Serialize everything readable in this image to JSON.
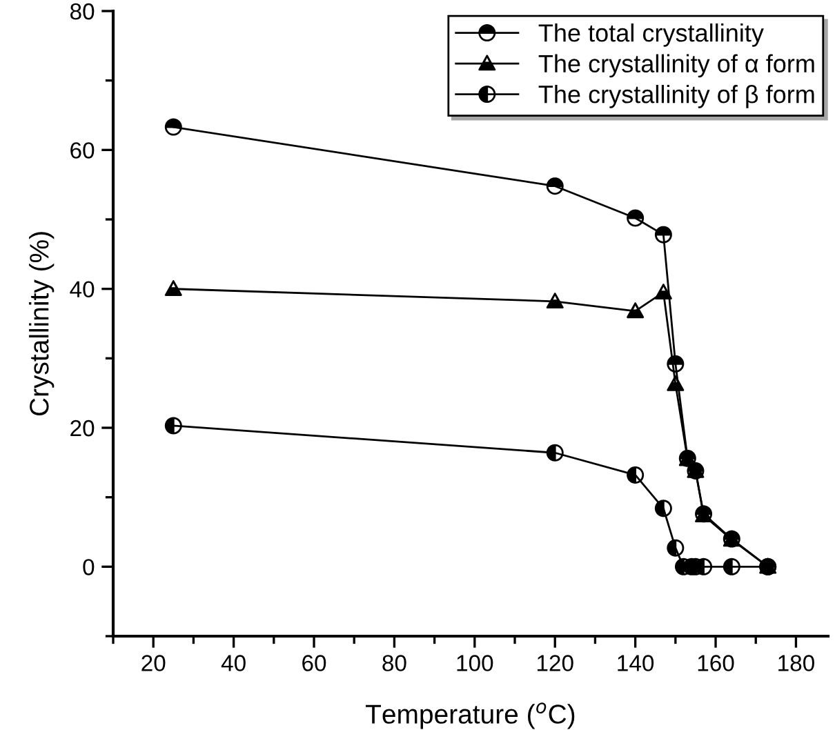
{
  "chart_data": {
    "type": "line",
    "xlabel": "Temperature ($^{o}$C)",
    "ylabel": "Crystallinity (%)",
    "xlim": [
      10,
      188
    ],
    "ylim": [
      -10,
      80
    ],
    "xticks": [
      20,
      40,
      60,
      80,
      100,
      120,
      140,
      160,
      180
    ],
    "yticks": [
      0,
      20,
      40,
      60,
      80
    ],
    "legend": "top right",
    "grid": false,
    "line_style": "solid",
    "series": [
      {
        "name": "The total crystallinity",
        "color": "#000000",
        "marker": "circle",
        "x": [
          25,
          120,
          140,
          147,
          150,
          153,
          155,
          157,
          164,
          173
        ],
        "values": [
          63.3,
          54.8,
          50.2,
          47.8,
          29.2,
          15.6,
          13.8,
          7.6,
          4.0,
          0
        ]
      },
      {
        "name": "The crystallinity of α form",
        "color": "#000000",
        "marker": "triangle",
        "x": [
          25,
          120,
          140,
          147,
          150,
          153,
          155,
          157,
          164,
          173
        ],
        "values": [
          40.0,
          38.2,
          36.8,
          39.5,
          26.3,
          15.5,
          13.8,
          7.4,
          3.9,
          0
        ]
      },
      {
        "name": "The crystallinity of β form",
        "color": "#000000",
        "marker": "circle",
        "x": [
          25,
          120,
          140,
          147,
          150,
          152,
          154,
          155,
          157,
          164,
          173
        ],
        "values": [
          20.3,
          16.4,
          13.2,
          8.4,
          2.7,
          0,
          0,
          0,
          0,
          0,
          0
        ]
      }
    ]
  }
}
